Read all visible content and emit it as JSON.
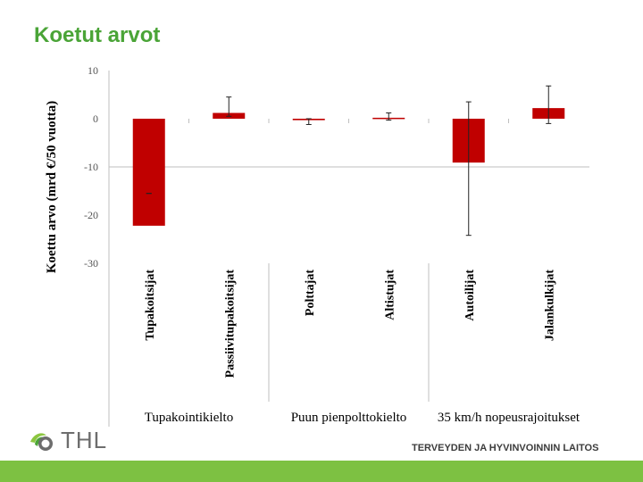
{
  "slide": {
    "title": "Koetut arvot",
    "logo_text": "THL",
    "organization": "TERVEYDEN JA HYVINVOINNIN LAITOS"
  },
  "colors": {
    "bar": "#c00000",
    "accent_green": "#4aa437",
    "footer_green": "#7dc142"
  },
  "icons": {
    "logo": "thl-logo-icon"
  },
  "chart_data": {
    "type": "bar",
    "ylabel": "Koettu arvo (mrd €/50 vuotta)",
    "ylim": [
      -30,
      10
    ],
    "yticks": [
      10,
      0,
      -10,
      -20,
      -30
    ],
    "categories": [
      "Tupakoitsijat",
      "Passiivitupakoitsijat",
      "Polttajat",
      "Altistujat",
      "Autoilijat",
      "Jalankulkijat"
    ],
    "values": [
      -22.2,
      1.2,
      -0.3,
      0.2,
      -9.1,
      2.2
    ],
    "error_low": [
      -15.5,
      0.5,
      -1.2,
      -0.3,
      -24.2,
      -1.0
    ],
    "error_high": [
      -15.5,
      4.5,
      0.0,
      1.2,
      3.5,
      6.8
    ],
    "groups": [
      {
        "label": "Tupakointikielto",
        "span": [
          0,
          1
        ]
      },
      {
        "label": "Puun pienpolttokielto",
        "span": [
          2,
          3
        ]
      },
      {
        "label": "35 km/h nopeusrajoitukset",
        "span": [
          4,
          5
        ]
      }
    ],
    "grid": false,
    "legend": "none"
  }
}
